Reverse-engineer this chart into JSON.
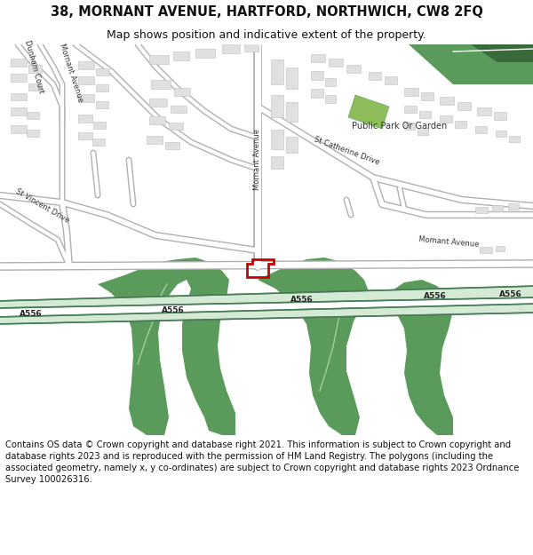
{
  "title_line1": "38, MORNANT AVENUE, HARTFORD, NORTHWICH, CW8 2FQ",
  "title_line2": "Map shows position and indicative extent of the property.",
  "footer_text": "Contains OS data © Crown copyright and database right 2021. This information is subject to Crown copyright and database rights 2023 and is reproduced with the permission of HM Land Registry. The polygons (including the associated geometry, namely x, y co-ordinates) are subject to Crown copyright and database rights 2023 Ordnance Survey 100026316.",
  "bg_color": "#ffffff",
  "map_bg": "#f0f0f0",
  "road_light": "#d4ead4",
  "road_dark": "#4a7c59",
  "building_fill": "#e0e0e0",
  "building_edge": "#c0c0c0",
  "green_dark": "#5a9a5a",
  "green_light": "#90c878",
  "park_fill": "#8ab86a",
  "red_plot": "#cc0000",
  "label_dark": "#333333",
  "label_road": "#2a5a30",
  "title_fs": 10.5,
  "sub_fs": 9,
  "footer_fs": 7.2,
  "label_fs": 6.5
}
